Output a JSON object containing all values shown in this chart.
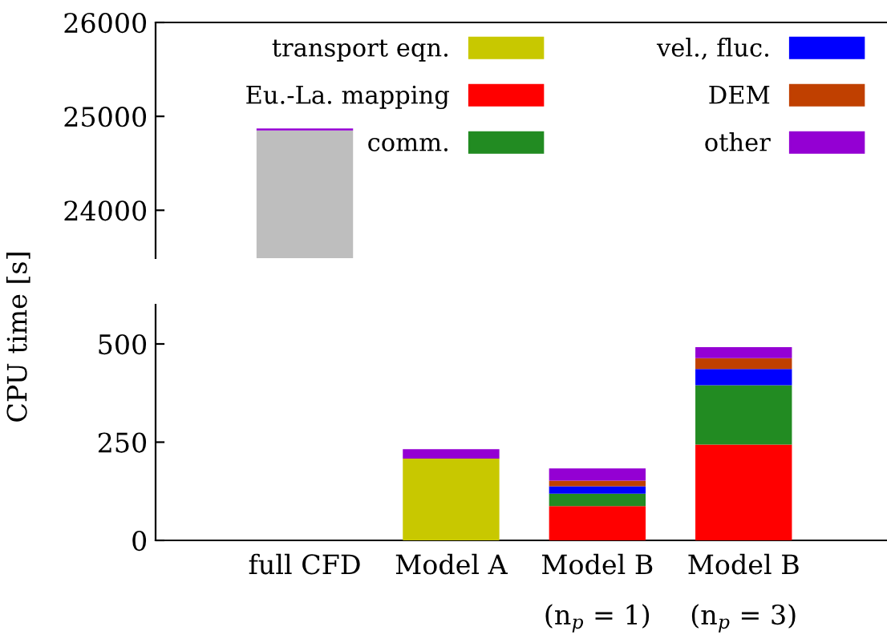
{
  "chart_data": [
    {
      "type": "bar",
      "categories": [
        null,
        null,
        null,
        null
      ],
      "ylim": [
        23490,
        26000
      ],
      "yticks": [
        24000,
        25000,
        26000
      ],
      "tick_labels": "y",
      "grid": false,
      "series": [
        {
          "color": "#bebebe",
          "values": [
            24850,
            null,
            null,
            null
          ]
        },
        {
          "color": "#9400d3",
          "base": [
            24850,
            null,
            null,
            null
          ],
          "values": [
            20,
            null,
            null,
            null
          ]
        }
      ]
    },
    {
      "type": "bar",
      "stacked": true,
      "ylabel": "CPU time [s]",
      "categories": [
        "full CFD",
        "Model A",
        "Model B\n(n$_{p}$ = 1)",
        "Model B\n(n$_{p}$ = 3)"
      ],
      "ylim": [
        0,
        600
      ],
      "yticks": [
        0,
        250,
        500
      ],
      "grid": false,
      "legend": "top",
      "series": [
        {
          "name": "transport eqn.",
          "color": "#c8c800",
          "values": [
            null,
            208,
            null,
            null
          ]
        },
        {
          "name": "Eu.-La. mapping",
          "color": "#ff0000",
          "values": [
            null,
            null,
            87,
            244
          ]
        },
        {
          "name": "comm.",
          "color": "#228b22",
          "values": [
            null,
            null,
            32,
            151
          ]
        },
        {
          "name": "vel., fluc.",
          "color": "#0000ff",
          "values": [
            null,
            null,
            19,
            41
          ]
        },
        {
          "name": "DEM",
          "color": "#c04000",
          "values": [
            null,
            null,
            14,
            28
          ]
        },
        {
          "name": "other",
          "color": "#9400d3",
          "values": [
            null,
            24,
            31,
            28
          ]
        }
      ]
    }
  ]
}
